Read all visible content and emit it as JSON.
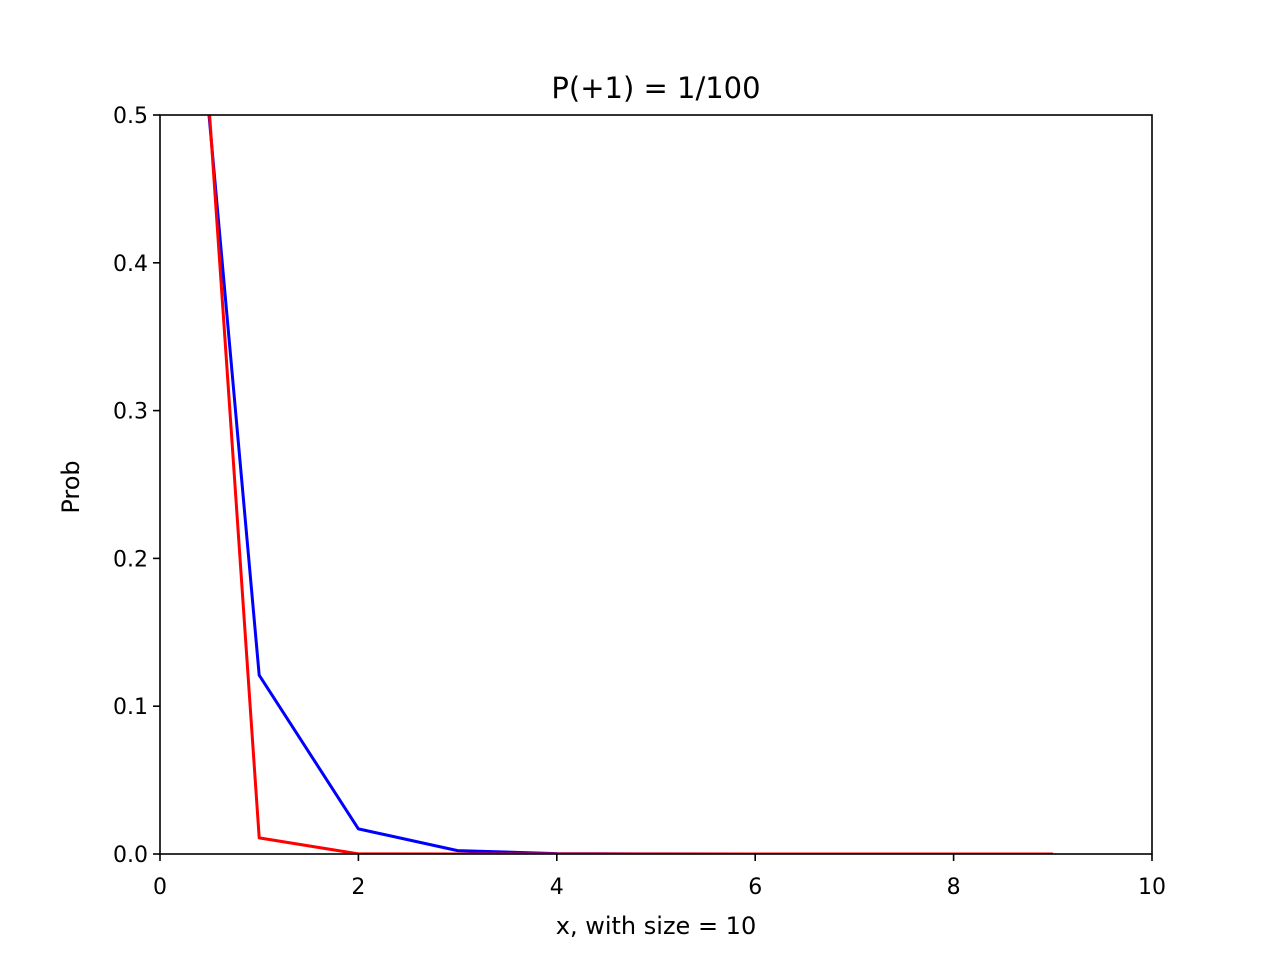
{
  "chart_data": {
    "type": "line",
    "title": "P(+1) = 1/100",
    "xlabel": "x, with size = 10",
    "ylabel": "Prob",
    "xlim": [
      0,
      10
    ],
    "ylim": [
      0,
      0.5
    ],
    "x_ticks": [
      "0",
      "2",
      "4",
      "6",
      "8",
      "10"
    ],
    "y_ticks": [
      "0.0",
      "0.1",
      "0.2",
      "0.3",
      "0.4",
      "0.5"
    ],
    "grid": false,
    "legend": "none",
    "series": [
      {
        "color": "#0000ff",
        "x": [
          0,
          1,
          2,
          3,
          4,
          5,
          6,
          7,
          8,
          9
        ],
        "y": [
          0.87,
          0.121,
          0.017,
          0.0023,
          0.0003,
          4e-05,
          5e-06,
          6e-07,
          8e-08,
          1e-08
        ]
      },
      {
        "color": "#ff0000",
        "x": [
          0,
          1,
          2,
          3,
          4,
          5,
          6,
          7,
          8,
          9
        ],
        "y": [
          0.989,
          0.0109,
          0.0001,
          1e-06,
          1e-08,
          0.0,
          0.0,
          0.0,
          0.0,
          0.0
        ]
      }
    ]
  }
}
